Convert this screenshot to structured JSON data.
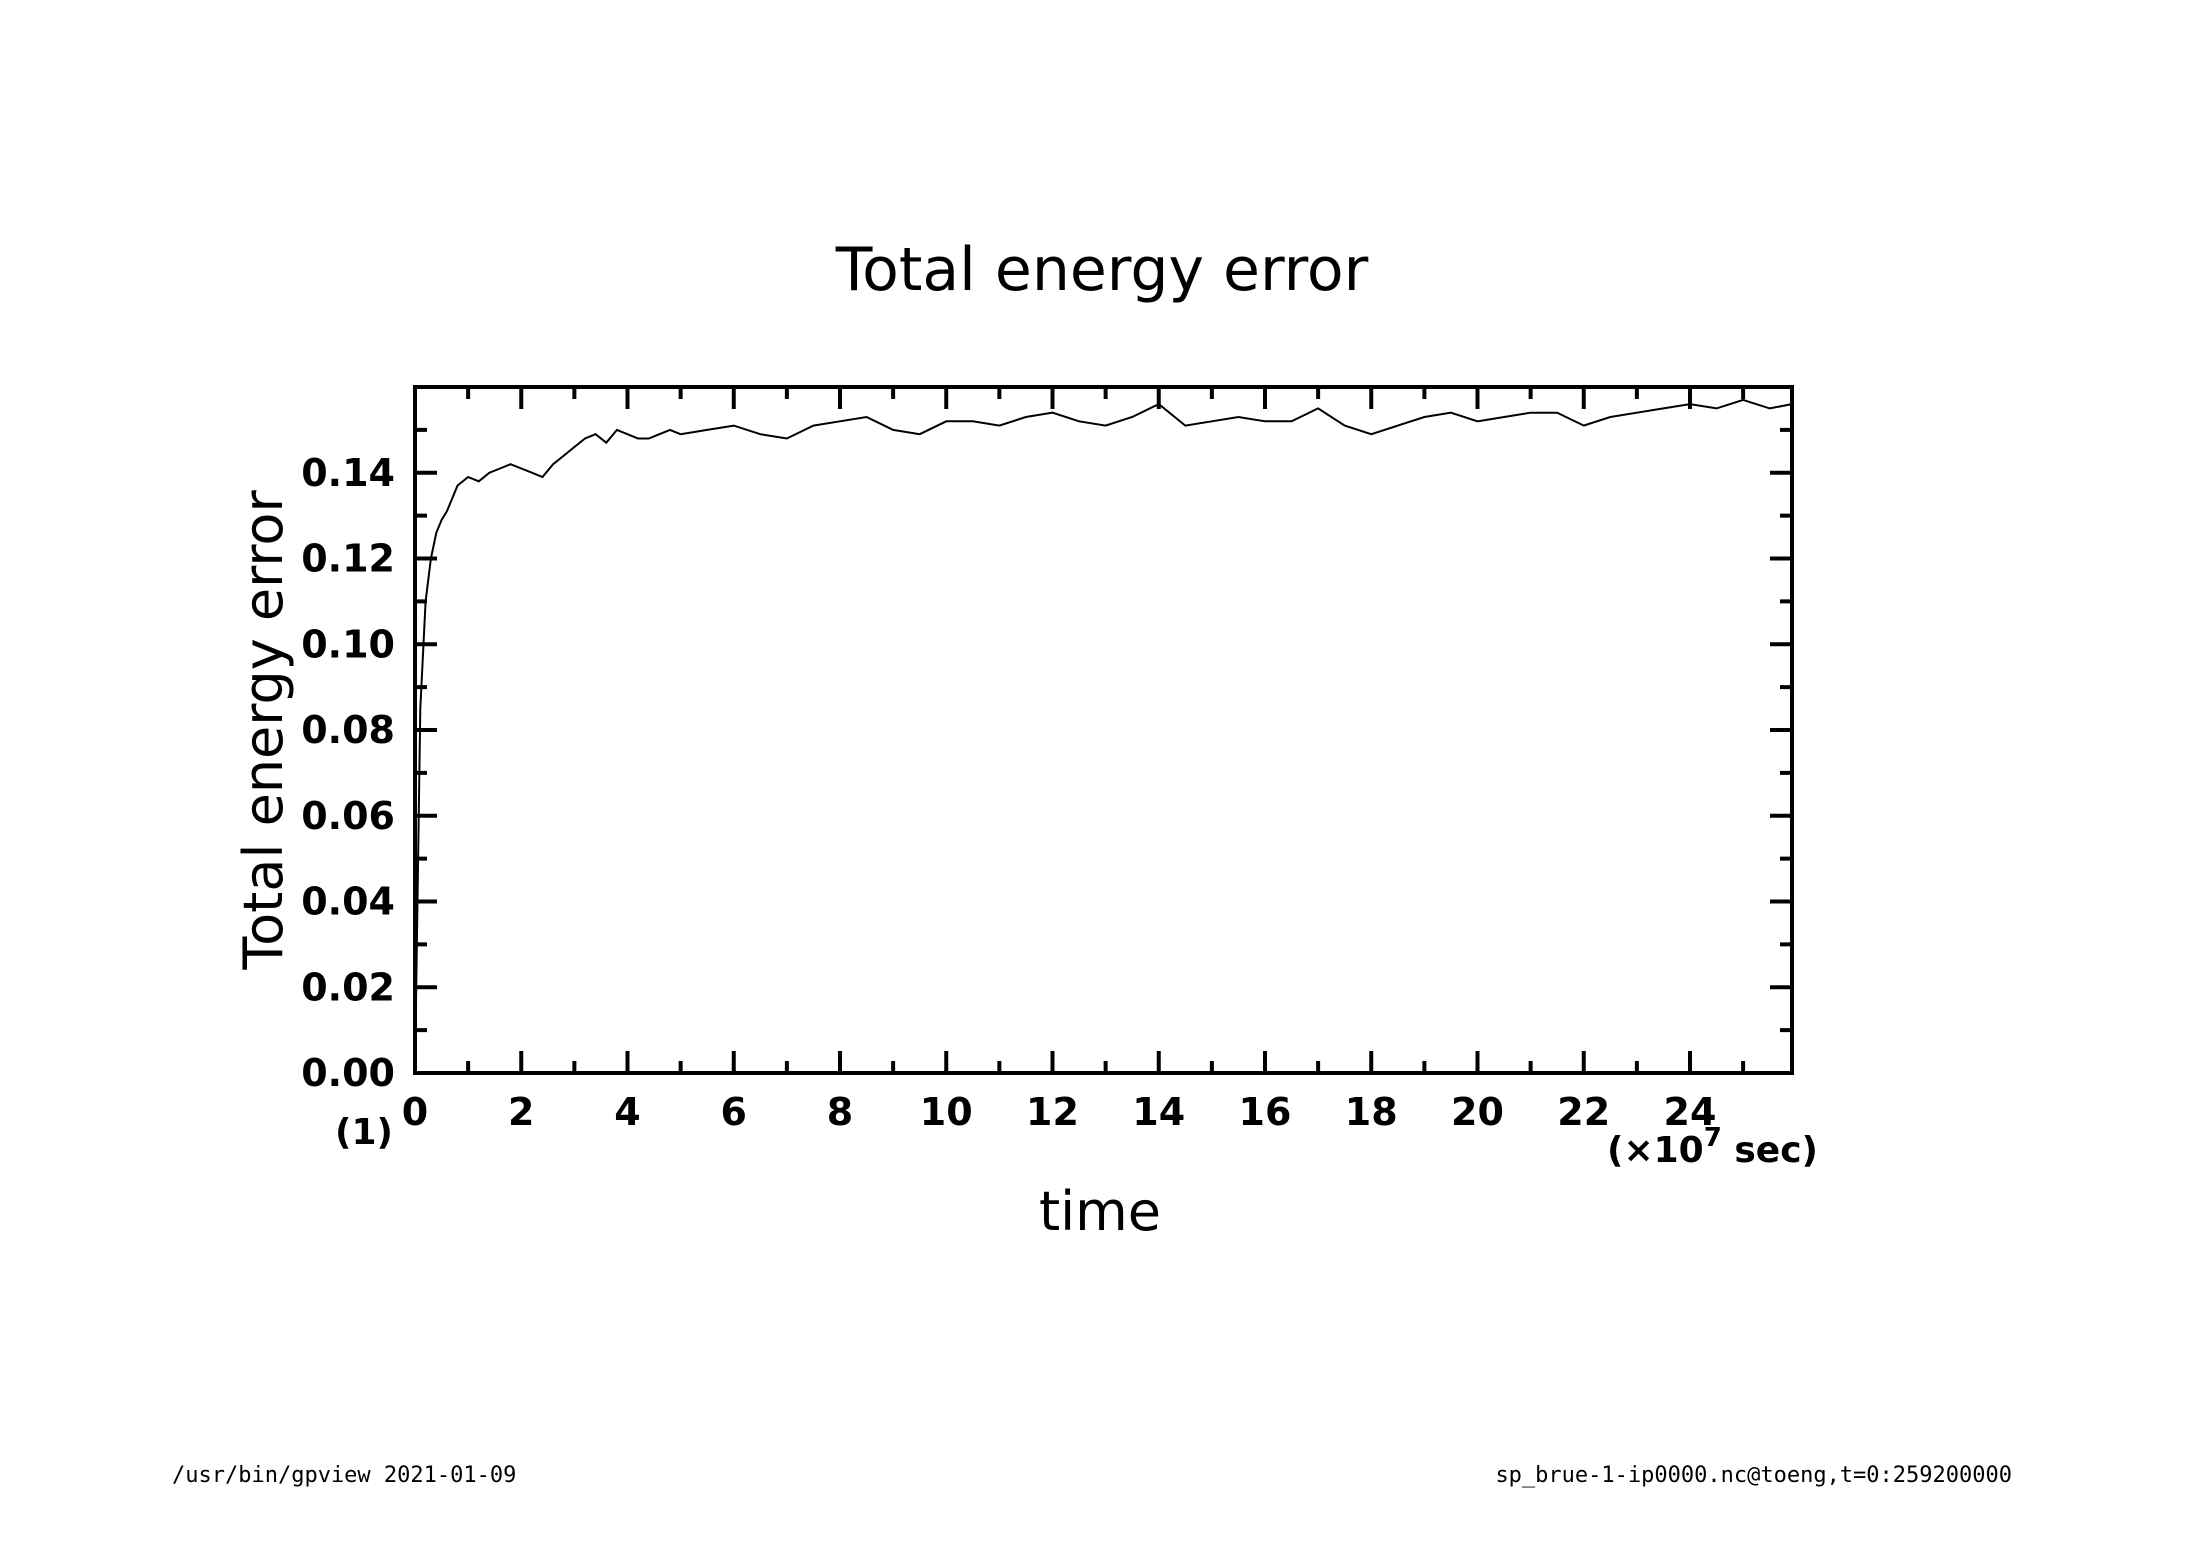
{
  "chart_data": {
    "type": "line",
    "title": "Total energy error",
    "xlabel": "time",
    "ylabel": "Total energy error",
    "x_unit_label": "(×10",
    "x_unit_exponent": "7",
    "x_unit_suffix": " sec)",
    "y_unit_label": "(1)",
    "xlim": [
      0,
      25.92
    ],
    "ylim": [
      0,
      0.16
    ],
    "x_ticks": [
      "0",
      "2",
      "4",
      "6",
      "8",
      "10",
      "12",
      "14",
      "16",
      "18",
      "20",
      "22",
      "24"
    ],
    "y_ticks": [
      "0.00",
      "0.02",
      "0.04",
      "0.06",
      "0.08",
      "0.10",
      "0.12",
      "0.14"
    ],
    "grid": false,
    "series": [
      {
        "x": [
          0,
          0.1,
          0.2,
          0.3,
          0.4,
          0.5,
          0.6,
          0.7,
          0.8,
          1.0,
          1.2,
          1.4,
          1.6,
          1.8,
          2.0,
          2.2,
          2.4,
          2.6,
          2.8,
          3.0,
          3.2,
          3.4,
          3.6,
          3.8,
          4.0,
          4.2,
          4.4,
          4.6,
          4.8,
          5.0,
          5.5,
          6.0,
          6.5,
          7.0,
          7.5,
          8.0,
          8.5,
          9.0,
          9.5,
          10.0,
          10.5,
          11.0,
          11.5,
          12.0,
          12.5,
          13.0,
          13.5,
          14.0,
          14.5,
          15.0,
          15.5,
          16.0,
          16.5,
          17.0,
          17.5,
          18.0,
          18.5,
          19.0,
          19.5,
          20.0,
          20.5,
          21.0,
          21.5,
          22.0,
          22.5,
          23.0,
          23.5,
          24.0,
          24.5,
          25.0,
          25.5,
          25.92
        ],
        "y": [
          0,
          0.085,
          0.11,
          0.12,
          0.126,
          0.129,
          0.131,
          0.134,
          0.137,
          0.139,
          0.138,
          0.14,
          0.141,
          0.142,
          0.141,
          0.14,
          0.139,
          0.142,
          0.144,
          0.146,
          0.148,
          0.149,
          0.147,
          0.15,
          0.149,
          0.148,
          0.148,
          0.149,
          0.15,
          0.149,
          0.15,
          0.151,
          0.149,
          0.148,
          0.151,
          0.152,
          0.153,
          0.15,
          0.149,
          0.152,
          0.152,
          0.151,
          0.153,
          0.154,
          0.152,
          0.151,
          0.153,
          0.156,
          0.151,
          0.152,
          0.153,
          0.152,
          0.152,
          0.155,
          0.151,
          0.149,
          0.151,
          0.153,
          0.154,
          0.152,
          0.153,
          0.154,
          0.154,
          0.151,
          0.153,
          0.154,
          0.155,
          0.156,
          0.155,
          0.157,
          0.155,
          0.156
        ]
      }
    ]
  },
  "footer": {
    "left": "/usr/bin/gpview   2021-01-09",
    "right": "sp_brue-1-ip0000.nc@toeng,t=0:259200000"
  }
}
